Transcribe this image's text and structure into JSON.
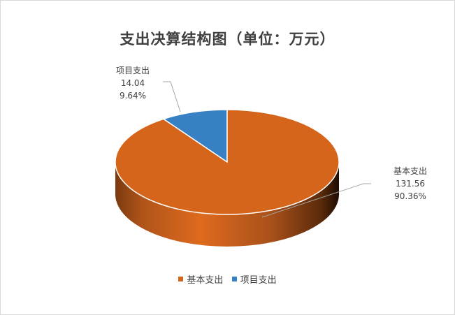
{
  "chart_data": {
    "type": "pie",
    "title": "支出决算结构图（单位：万元）",
    "slices": [
      {
        "name": "基本支出",
        "value": 131.56,
        "percent_label": "90.36%",
        "value_label": "131.56",
        "color": "#D4651A"
      },
      {
        "name": "项目支出",
        "value": 14.04,
        "percent_label": "9.64%",
        "value_label": "14.04",
        "color": "#3780C4"
      }
    ],
    "style": "3d",
    "legend_position": "bottom"
  }
}
